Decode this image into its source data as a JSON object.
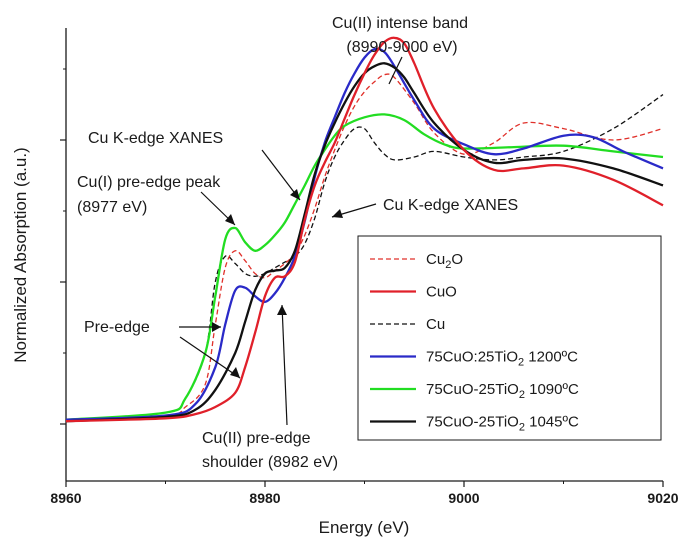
{
  "chart_data": {
    "type": "line",
    "title": "",
    "xlabel": "Energy (eV)",
    "ylabel": "Normalized Absorption (a.u.)",
    "xlim": [
      8960,
      9020
    ],
    "ylim": [
      0,
      2.2
    ],
    "x_ticks": [
      8960,
      8980,
      9000,
      9020
    ],
    "x_tick_labels": [
      "8960",
      "8980",
      "9000",
      "9020"
    ],
    "y_ticks": [
      0,
      1,
      2
    ],
    "y_tick_labels_shown": false,
    "grid": false,
    "legend": {
      "position": "bottom-right",
      "entries": [
        {
          "name": "Cu2O",
          "label_parts": [
            "Cu",
            "2",
            "O"
          ],
          "color": "#e0302a",
          "dash": "dashed"
        },
        {
          "name": "CuO",
          "label_parts": [
            "CuO",
            "",
            ""
          ],
          "color": "#e0202a",
          "dash": "solid"
        },
        {
          "name": "Cu",
          "label_parts": [
            "Cu",
            "",
            ""
          ],
          "color": "#111111",
          "dash": "dashed"
        },
        {
          "name": "75CuO:25TiO2 1200ºC",
          "label_parts": [
            "75CuO:25TiO",
            "2",
            " 1200ºC"
          ],
          "color": "#2a2ac8",
          "dash": "solid"
        },
        {
          "name": "75CuO-25TiO2 1090ºC",
          "label_parts": [
            "75CuO-25TiO",
            "2",
            " 1090ºC"
          ],
          "color": "#22dd22",
          "dash": "solid"
        },
        {
          "name": "75CuO-25TiO2 1045ºC",
          "label_parts": [
            "75CuO-25TiO",
            "2",
            " 1045ºC"
          ],
          "color": "#111111",
          "dash": "solid"
        }
      ]
    },
    "annotations": [
      {
        "lines": [
          "Cu(II) intense band",
          "(8990-9000 eV)"
        ]
      },
      {
        "lines": [
          "Cu K-edge XANES"
        ]
      },
      {
        "lines": [
          "Cu(I) pre-edge peak",
          "(8977 eV)"
        ]
      },
      {
        "lines": [
          "Cu K-edge XANES"
        ]
      },
      {
        "lines": [
          "Pre-edge"
        ]
      },
      {
        "lines": [
          "Cu(II) pre-edge",
          "shoulder (8982 eV)"
        ]
      }
    ],
    "series": [
      {
        "name": "Cu2O",
        "color": "#e0302a",
        "dash": "dashed",
        "x": [
          8960,
          8970,
          8972,
          8974,
          8975,
          8976,
          8977,
          8978,
          8979,
          8980,
          8981,
          8982,
          8983,
          8984,
          8985,
          8986,
          8987,
          8988,
          8989,
          8990,
          8991,
          8992,
          8993,
          8995,
          8997,
          9000,
          9003,
          9006,
          9010,
          9015,
          9020
        ],
        "y": [
          0.03,
          0.06,
          0.12,
          0.28,
          0.7,
          1.1,
          1.22,
          1.15,
          1.06,
          1.03,
          1.08,
          1.13,
          1.2,
          1.33,
          1.52,
          1.74,
          1.93,
          2.1,
          2.24,
          2.34,
          2.41,
          2.46,
          2.44,
          2.26,
          2.05,
          1.9,
          1.98,
          2.12,
          2.08,
          2.0,
          2.08
        ]
      },
      {
        "name": "CuO",
        "color": "#e0202a",
        "dash": "solid",
        "x": [
          8960,
          8970,
          8973,
          8975,
          8977,
          8978,
          8979,
          8980,
          8981,
          8982,
          8983,
          8984,
          8985,
          8986,
          8987,
          8988,
          8989,
          8990,
          8991,
          8992,
          8993,
          8994,
          8995,
          8997,
          9000,
          9003,
          9006,
          9010,
          9015,
          9020
        ],
        "y": [
          0.02,
          0.04,
          0.07,
          0.12,
          0.22,
          0.4,
          0.64,
          0.9,
          1.03,
          1.04,
          1.14,
          1.44,
          1.68,
          1.84,
          1.98,
          2.15,
          2.32,
          2.47,
          2.6,
          2.69,
          2.72,
          2.68,
          2.54,
          2.22,
          1.93,
          1.79,
          1.8,
          1.82,
          1.72,
          1.54
        ]
      },
      {
        "name": "Cu",
        "color": "#111111",
        "dash": "dashed",
        "x": [
          8960,
          8970,
          8972,
          8974,
          8975,
          8976,
          8977,
          8978,
          8979,
          8980,
          8981,
          8982,
          8983,
          8984,
          8985,
          8986,
          8987,
          8988,
          8989,
          8990,
          8991,
          8992,
          8993,
          8995,
          8997,
          9000,
          9003,
          9006,
          9010,
          9015,
          9020
        ],
        "y": [
          0.03,
          0.08,
          0.18,
          0.5,
          1.0,
          1.18,
          1.13,
          1.06,
          1.04,
          1.06,
          1.1,
          1.14,
          1.18,
          1.27,
          1.45,
          1.7,
          1.88,
          2.0,
          2.08,
          2.08,
          1.98,
          1.9,
          1.86,
          1.88,
          1.92,
          1.88,
          1.86,
          1.88,
          1.92,
          2.08,
          2.32
        ]
      },
      {
        "name": "75CuO:25TiO2 1200ºC",
        "color": "#2a2ac8",
        "dash": "solid",
        "x": [
          8960,
          8970,
          8973,
          8975,
          8976,
          8977,
          8978,
          8979,
          8980,
          8981,
          8982,
          8983,
          8984,
          8985,
          8986,
          8987,
          8988,
          8989,
          8990,
          8991,
          8992,
          8993,
          8995,
          8997,
          9000,
          9003,
          9006,
          9010,
          9013,
          9016,
          9020
        ],
        "y": [
          0.03,
          0.06,
          0.14,
          0.4,
          0.7,
          0.94,
          0.96,
          0.9,
          0.86,
          0.92,
          1.03,
          1.18,
          1.43,
          1.74,
          1.98,
          2.16,
          2.33,
          2.47,
          2.58,
          2.64,
          2.62,
          2.52,
          2.28,
          2.08,
          1.97,
          1.9,
          1.94,
          2.03,
          2.02,
          1.92,
          1.8
        ]
      },
      {
        "name": "75CuO-25TiO2 1090ºC",
        "color": "#22dd22",
        "dash": "solid",
        "x": [
          8960,
          8970,
          8972,
          8974,
          8975,
          8976,
          8977,
          8978,
          8979,
          8980,
          8981,
          8982,
          8983,
          8984,
          8985,
          8986,
          8987,
          8988,
          8990,
          8992,
          8994,
          8996,
          8998,
          9000,
          9005,
          9010,
          9015,
          9020
        ],
        "y": [
          0.03,
          0.08,
          0.18,
          0.5,
          0.9,
          1.3,
          1.38,
          1.28,
          1.22,
          1.26,
          1.33,
          1.42,
          1.55,
          1.68,
          1.82,
          1.93,
          2.03,
          2.1,
          2.16,
          2.18,
          2.14,
          2.04,
          1.97,
          1.94,
          1.95,
          1.96,
          1.92,
          1.88
        ]
      },
      {
        "name": "75CuO-25TiO2 1045ºC",
        "color": "#111111",
        "dash": "solid",
        "x": [
          8960,
          8970,
          8973,
          8975,
          8977,
          8978,
          8979,
          8980,
          8981,
          8982,
          8983,
          8984,
          8985,
          8986,
          8987,
          8988,
          8989,
          8990,
          8991,
          8992,
          8993,
          8994,
          8995,
          8997,
          9000,
          9003,
          9006,
          9010,
          9015,
          9020
        ],
        "y": [
          0.02,
          0.05,
          0.1,
          0.24,
          0.5,
          0.72,
          0.94,
          1.06,
          1.08,
          1.1,
          1.22,
          1.48,
          1.76,
          1.96,
          2.12,
          2.26,
          2.38,
          2.47,
          2.52,
          2.54,
          2.51,
          2.44,
          2.33,
          2.12,
          1.93,
          1.84,
          1.86,
          1.87,
          1.8,
          1.68
        ]
      }
    ]
  }
}
